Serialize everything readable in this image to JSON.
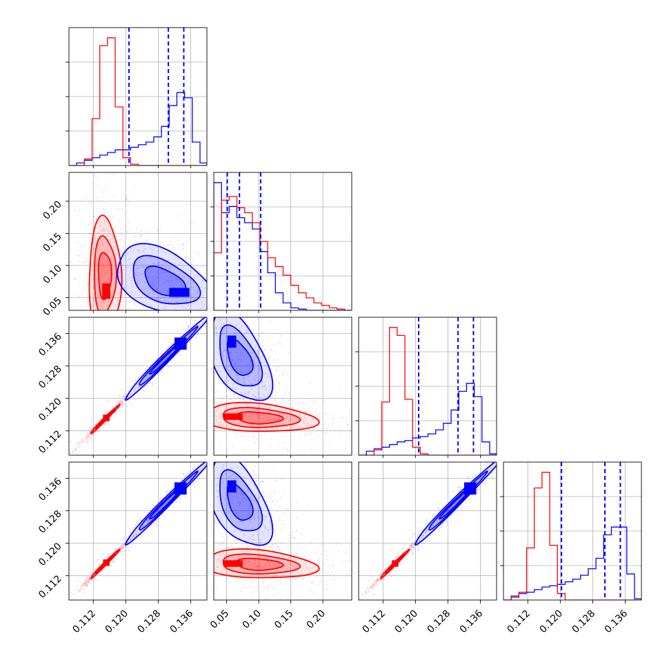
{
  "chart_data": {
    "type": "corner",
    "description_free": true,
    "n_params": 4,
    "grid": true,
    "colors": {
      "red": "#ff0000",
      "blue": "#0000ff"
    },
    "axes": [
      {
        "range": [
          0.106,
          0.14
        ],
        "ticks": [
          0.112,
          0.12,
          0.128,
          0.136
        ],
        "tick_labels": [
          "0.112",
          "0.120",
          "0.128",
          "0.136"
        ]
      },
      {
        "range": [
          0.03,
          0.245
        ],
        "ticks": [
          0.05,
          0.1,
          0.15,
          0.2
        ],
        "tick_labels": [
          "0.05",
          "0.10",
          "0.15",
          "0.20"
        ]
      },
      {
        "range": [
          0.106,
          0.14
        ],
        "ticks": [
          0.112,
          0.12,
          0.128,
          0.136
        ],
        "tick_labels": [
          "0.112",
          "0.120",
          "0.128",
          "0.136"
        ]
      },
      {
        "range": [
          0.106,
          0.14
        ],
        "ticks": [
          0.112,
          0.12,
          0.128,
          0.136
        ],
        "tick_labels": [
          "0.112",
          "0.120",
          "0.128",
          "0.136"
        ]
      }
    ],
    "diag_hist": [
      {
        "edges": [
          0.106,
          0.1079,
          0.1098,
          0.1117,
          0.1136,
          0.1155,
          0.1174,
          0.1193,
          0.1212,
          0.1231,
          0.125,
          0.1269,
          0.1288,
          0.1307,
          0.1326,
          0.1345,
          0.1364,
          0.1383,
          0.14
        ],
        "red": [
          0,
          0,
          0.05,
          0.36,
          0.92,
          0.98,
          0.45,
          0.06,
          0.01,
          0,
          0,
          0,
          0,
          0,
          0,
          0,
          0,
          0
        ],
        "blue": [
          0,
          0.02,
          0.04,
          0.06,
          0.08,
          0.1,
          0.12,
          0.12,
          0.14,
          0.16,
          0.18,
          0.22,
          0.3,
          0.46,
          0.56,
          0.52,
          0.18,
          0.02
        ],
        "quantiles": [
          0.1208,
          0.1305,
          0.1343
        ]
      },
      {
        "edges": [
          0.03,
          0.042,
          0.054,
          0.066,
          0.078,
          0.09,
          0.102,
          0.114,
          0.126,
          0.138,
          0.15,
          0.162,
          0.174,
          0.186,
          0.198,
          0.21,
          0.222,
          0.234,
          0.245
        ],
        "red": [
          0.46,
          0.88,
          0.91,
          0.82,
          0.78,
          0.7,
          0.55,
          0.42,
          0.35,
          0.28,
          0.2,
          0.14,
          0.1,
          0.06,
          0.04,
          0.02,
          0.01,
          0
        ],
        "blue": [
          1.02,
          0.78,
          0.83,
          0.74,
          0.7,
          0.65,
          0.47,
          0.3,
          0.14,
          0.06,
          0.02,
          0.01,
          0,
          0,
          0,
          0,
          0,
          0
        ],
        "quantiles": [
          0.051,
          0.07,
          0.103
        ]
      },
      {
        "edges": [
          0.106,
          0.1079,
          0.1098,
          0.1117,
          0.1136,
          0.1155,
          0.1174,
          0.1193,
          0.1212,
          0.1231,
          0.125,
          0.1269,
          0.1288,
          0.1307,
          0.1326,
          0.1345,
          0.1364,
          0.1383,
          0.14
        ],
        "red": [
          0,
          0,
          0.05,
          0.4,
          0.96,
          0.9,
          0.42,
          0.06,
          0.01,
          0,
          0,
          0,
          0,
          0,
          0,
          0,
          0,
          0
        ],
        "blue": [
          0,
          0.03,
          0.04,
          0.06,
          0.08,
          0.1,
          0.11,
          0.13,
          0.14,
          0.16,
          0.19,
          0.24,
          0.34,
          0.48,
          0.54,
          0.44,
          0.1,
          0.01
        ],
        "quantiles": [
          0.1208,
          0.1305,
          0.1343
        ]
      },
      {
        "edges": [
          0.106,
          0.1079,
          0.1098,
          0.1117,
          0.1136,
          0.1155,
          0.1174,
          0.1193,
          0.1212,
          0.1231,
          0.125,
          0.1269,
          0.1288,
          0.1307,
          0.1326,
          0.1345,
          0.1364,
          0.1383,
          0.14
        ],
        "red": [
          0,
          0.02,
          0.06,
          0.4,
          0.86,
          0.98,
          0.42,
          0.05,
          0,
          0,
          0,
          0,
          0,
          0,
          0,
          0,
          0,
          0
        ],
        "blue": [
          0,
          0.03,
          0.05,
          0.06,
          0.08,
          0.1,
          0.11,
          0.12,
          0.14,
          0.16,
          0.19,
          0.24,
          0.32,
          0.5,
          0.56,
          0.56,
          0.2,
          0.01
        ],
        "quantiles": [
          0.1203,
          0.131,
          0.1348
        ]
      }
    ],
    "pair_scatter": {
      "1_0": {
        "red": {
          "center": [
            0.1148,
            0.085
          ],
          "spread": [
            0.0018,
            0.04
          ],
          "corr": 0.0,
          "inner": [
            [
              0.1152,
              0.06
            ],
            [
              0.001,
              0.012
            ]
          ]
        },
        "blue": {
          "center": [
            0.1295,
            0.075
          ],
          "spread": [
            0.0055,
            0.025
          ],
          "corr": -0.45,
          "inner": [
            [
              0.1332,
              0.058
            ],
            [
              0.0025,
              0.007
            ]
          ]
        }
      },
      "2_0": {
        "red": {
          "center": [
            0.1148,
            0.1148
          ],
          "spread": [
            0.0016,
            0.0016
          ],
          "corr": 0.99,
          "inner": [
            [
              0.1152,
              0.1152
            ],
            [
              0.0008,
              0.0008
            ]
          ]
        },
        "blue": {
          "center": [
            0.13,
            0.13
          ],
          "spread": [
            0.0048,
            0.0048
          ],
          "corr": 0.99,
          "inner": [
            [
              0.1335,
              0.1335
            ],
            [
              0.0015,
              0.0015
            ]
          ]
        }
      },
      "2_1": {
        "red": {
          "center": [
            0.1,
            0.1152
          ],
          "spread": [
            0.04,
            0.0016
          ],
          "corr": -0.2,
          "inner": [
            [
              0.06,
              0.1155
            ],
            [
              0.015,
              0.0008
            ]
          ]
        },
        "blue": {
          "center": [
            0.07,
            0.13
          ],
          "spread": [
            0.022,
            0.005
          ],
          "corr": -0.5,
          "inner": [
            [
              0.058,
              0.134
            ],
            [
              0.007,
              0.0015
            ]
          ]
        }
      },
      "3_0": {
        "red": {
          "center": [
            0.1148,
            0.1148
          ],
          "spread": [
            0.0016,
            0.0016
          ],
          "corr": 0.99,
          "inner": [
            [
              0.1152,
              0.1152
            ],
            [
              0.0008,
              0.0008
            ]
          ]
        },
        "blue": {
          "center": [
            0.13,
            0.13
          ],
          "spread": [
            0.0048,
            0.0048
          ],
          "corr": 0.99,
          "inner": [
            [
              0.1335,
              0.1335
            ],
            [
              0.0015,
              0.0015
            ]
          ]
        }
      },
      "3_1": {
        "red": {
          "center": [
            0.1,
            0.1148
          ],
          "spread": [
            0.04,
            0.0016
          ],
          "corr": -0.2,
          "inner": [
            [
              0.06,
              0.115
            ],
            [
              0.015,
              0.0008
            ]
          ]
        },
        "blue": {
          "center": [
            0.07,
            0.13
          ],
          "spread": [
            0.022,
            0.005
          ],
          "corr": -0.5,
          "inner": [
            [
              0.058,
              0.134
            ],
            [
              0.007,
              0.0015
            ]
          ]
        }
      },
      "3_2": {
        "red": {
          "center": [
            0.1148,
            0.1148
          ],
          "spread": [
            0.0016,
            0.0016
          ],
          "corr": 0.99,
          "inner": [
            [
              0.115,
              0.115
            ],
            [
              0.0008,
              0.0008
            ]
          ]
        },
        "blue": {
          "center": [
            0.13,
            0.13
          ],
          "spread": [
            0.0048,
            0.0048
          ],
          "corr": 0.99,
          "inner": [
            [
              0.1335,
              0.1335
            ],
            [
              0.0015,
              0.0015
            ]
          ]
        }
      }
    }
  }
}
